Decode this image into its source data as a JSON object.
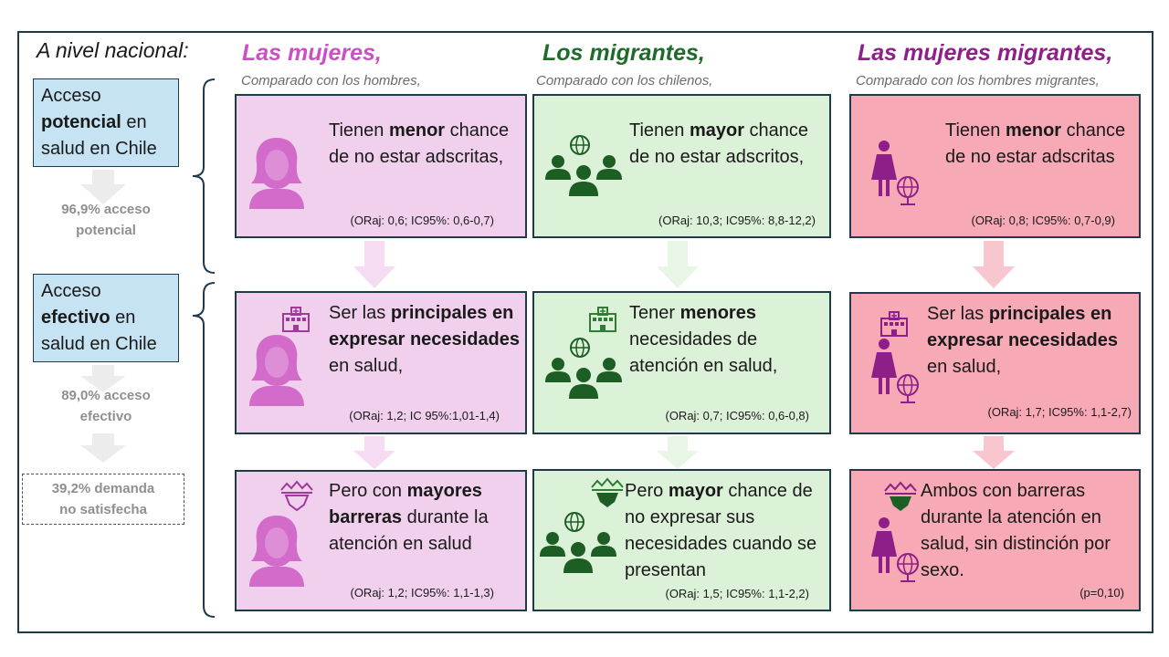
{
  "header_left": "A nivel nacional:",
  "stages": [
    {
      "line1": "Acceso",
      "bold": "potencial",
      "rest": " en",
      "line3": "salud en Chile"
    },
    {
      "line1": "Acceso",
      "bold": "efectivo",
      "rest": " en",
      "line3": "salud en Chile"
    }
  ],
  "stats_left": [
    {
      "line1": "96,9% acceso",
      "line2": "potencial"
    },
    {
      "line1": "89,0% acceso",
      "line2": "efectivo"
    },
    {
      "line1": "39,2% demanda",
      "line2": "no satisfecha"
    }
  ],
  "columns": [
    {
      "title": "Las mujeres,",
      "subtitle": "Comparado con los hombres,",
      "color": "#cc4fc3",
      "rows": [
        {
          "pre": "Tienen ",
          "bold": "menor",
          "post": " chance de no estar adscritas,",
          "stats": "(ORaj: 0,6; IC95%: 0,6-0,7)"
        },
        {
          "pre": "Ser las ",
          "bold": "principales en expresar necesidades",
          "post": " en salud,",
          "stats": "(ORaj: 1,2; IC 95%:1,01-1,4)"
        },
        {
          "pre": "Pero con ",
          "bold": "mayores barreras",
          "post": " durante la atención en salud",
          "stats": "(ORaj: 1,2; IC95%: 1,1-1,3)"
        }
      ]
    },
    {
      "title": "Los migrantes,",
      "subtitle": "Comparado con los chilenos,",
      "color": "#1f6b2a",
      "rows": [
        {
          "pre": "Tienen ",
          "bold": "mayor",
          "post": " chance de no estar adscritos,",
          "stats": "(ORaj: 10,3; IC95%: 8,8-12,2)"
        },
        {
          "pre": "Tener ",
          "bold": "menores",
          "post": " necesidades de atención en salud,",
          "stats": "(ORaj: 0,7; IC95%: 0,6-0,8)"
        },
        {
          "pre": "Pero ",
          "bold": "mayor",
          "post": " chance de no expresar sus necesidades cuando se presentan",
          "stats": "(ORaj: 1,5; IC95%: 1,1-2,2)"
        }
      ]
    },
    {
      "title": "Las mujeres migrantes,",
      "subtitle": "Comparado con los hombres migrantes,",
      "color": "#8e1f88",
      "rows": [
        {
          "pre": "Tienen ",
          "bold": "menor",
          "post": " chance de no estar adscritas",
          "stats": "(ORaj: 0,8; IC95%: 0,7-0,9)"
        },
        {
          "pre": "Ser las ",
          "bold": "principales en expresar necesidades",
          "post": " en salud,",
          "stats": "(ORaj: 1,7; IC95%: 1,1-2,7)"
        },
        {
          "pre": "",
          "bold": "",
          "post": "Ambos con barreras durante la atención en salud, sin distinción por sexo.",
          "stats": "(p=0,10)"
        }
      ]
    }
  ],
  "colors": {
    "pink_box": "#f1d0ee",
    "green_box": "#dcf2d8",
    "rose_box": "#f7a9b6",
    "stage_box": "#c5e3f3",
    "women_icon": "#d36bcb",
    "migrant_icon": "#1d5e25",
    "migrant_women_icon": "#8e1f88"
  },
  "icons": [
    "woman-icon",
    "globe-icon",
    "group-icon",
    "hospital-icon",
    "barrier-icon"
  ]
}
